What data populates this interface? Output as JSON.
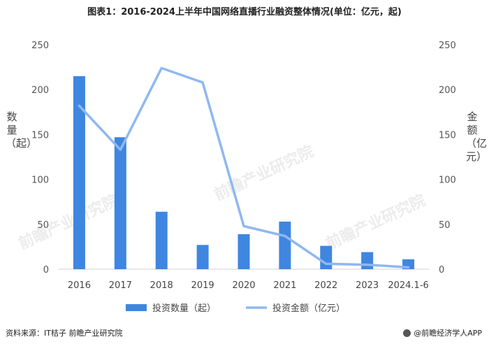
{
  "title": "图表1：2016-2024上半年中国网络直播行业融资整体情况(单位：亿元，起)",
  "source": "资料来源：IT桔子 前瞻产业研究院",
  "brand": "@前瞻经济学人APP",
  "watermark": "前瞻产业研究院",
  "chart_data": {
    "type": "bar+line",
    "categories": [
      "2016",
      "2017",
      "2018",
      "2019",
      "2020",
      "2021",
      "2022",
      "2023",
      "2024.1-6"
    ],
    "series": [
      {
        "name": "投资数量（起）",
        "type": "bar",
        "axis": "left",
        "color": "#3f86e0",
        "values": [
          215,
          147,
          64,
          27,
          39,
          53,
          26,
          19,
          11
        ]
      },
      {
        "name": "投资金额（亿元）",
        "type": "line",
        "axis": "right",
        "color": "#8fb8f0",
        "values": [
          182,
          133,
          224,
          208,
          48,
          37,
          6,
          5,
          2
        ]
      }
    ],
    "ylabel_left": "数量（起）",
    "ylabel_right": "金额（亿元）",
    "ylim_left": [
      0,
      250
    ],
    "ylim_right": [
      0,
      250
    ],
    "yticks": [
      0,
      50,
      100,
      150,
      200,
      250
    ],
    "grid": false,
    "legend": "bottom-center"
  }
}
